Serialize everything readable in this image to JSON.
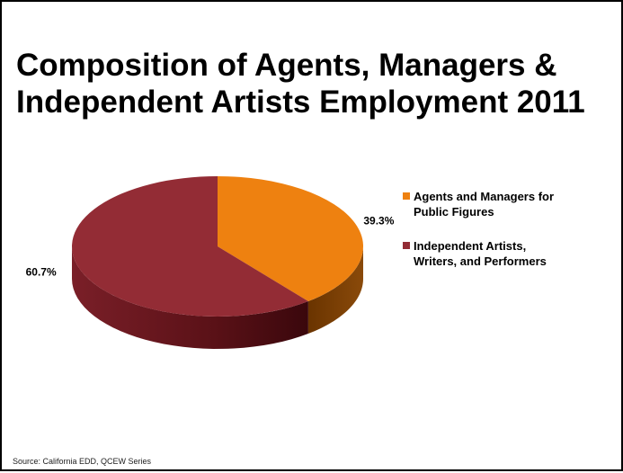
{
  "slide": {
    "title_lines": [
      "Composition of Agents, Managers &",
      "Independent Artists Employment 2011"
    ],
    "source": "Source:  California EDD, QCEW Series"
  },
  "chart_data": {
    "type": "pie",
    "style": "3d",
    "title": "Composition of Agents, Managers & Independent Artists Employment 2011",
    "legend_position": "right",
    "slices": [
      {
        "name": "Agents and Managers for Public Figures",
        "legend_lines": [
          "Agents and Managers for",
          "Public Figures"
        ],
        "value": 39.3,
        "label": "39.3%",
        "color": "#EE8110",
        "side_color": "#7A3E02"
      },
      {
        "name": "Independent Artists, Writers, and Performers",
        "legend_lines": [
          "Independent Artists,",
          "Writers, and Performers"
        ],
        "value": 60.7,
        "label": "60.7%",
        "color": "#932C35",
        "side_color": "#5A1117"
      }
    ]
  }
}
